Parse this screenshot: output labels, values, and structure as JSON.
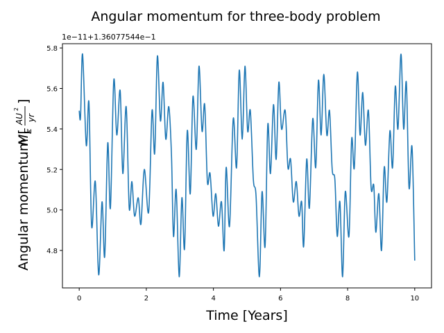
{
  "chart_data": {
    "type": "line",
    "title": "Angular momentum for three-body problem",
    "xlabel": "Time [Years]",
    "ylabel": {
      "text": "Angular momentum [",
      "symbol": "M",
      "subscript": "E",
      "numerator": "AU",
      "exponent": "2",
      "denominator": "yr",
      "close": "]"
    },
    "offset_text": "1e−11+1.36077544e−1",
    "xlim": [
      -0.5,
      10.5
    ],
    "ylim": [
      4.615,
      5.821
    ],
    "xticks": [
      0,
      2,
      4,
      6,
      8,
      10
    ],
    "yticks": [
      4.8,
      {
        "value": 5,
        "label": "5.0"
      },
      5.2,
      5.4,
      5.6,
      5.8
    ],
    "grid": false,
    "series": [
      {
        "color": "#1f77b4",
        "x": [
          0,
          0.04,
          0.1,
          0.21,
          0.29,
          0.37,
          0.48,
          0.58,
          0.68,
          0.76,
          0.85,
          0.93,
          1.03,
          1.12,
          1.22,
          1.3,
          1.4,
          1.49,
          1.57,
          1.65,
          1.76,
          1.84,
          1.94,
          2.07,
          2.17,
          2.25,
          2.33,
          2.42,
          2.5,
          2.58,
          2.67,
          2.75,
          2.81,
          2.89,
          2.98,
          3.06,
          3.14,
          3.22,
          3.31,
          3.39,
          3.49,
          3.57,
          3.66,
          3.74,
          3.82,
          3.9,
          3.99,
          4.07,
          4.15,
          4.24,
          4.32,
          4.38,
          4.48,
          4.59,
          4.69,
          4.77,
          4.86,
          4.94,
          5.02,
          5.1,
          5.19,
          5.27,
          5.37,
          5.45,
          5.54,
          5.62,
          5.7,
          5.79,
          5.87,
          5.95,
          6.03,
          6.14,
          6.22,
          6.3,
          6.38,
          6.47,
          6.55,
          6.63,
          6.69,
          6.78,
          6.86,
          6.96,
          7.05,
          7.13,
          7.21,
          7.29,
          7.38,
          7.46,
          7.54,
          7.62,
          7.69,
          7.77,
          7.85,
          7.93,
          8.04,
          8.12,
          8.2,
          8.29,
          8.37,
          8.45,
          8.53,
          8.62,
          8.7,
          8.78,
          8.84,
          8.93,
          9.01,
          9.09,
          9.17,
          9.26,
          9.34,
          9.42,
          9.5,
          9.59,
          9.67,
          9.75,
          9.83,
          9.92,
          10.0
        ],
        "values": [
          5.49,
          5.46,
          5.77,
          5.32,
          5.53,
          4.92,
          5.14,
          4.68,
          5.04,
          4.77,
          5.33,
          5.01,
          5.64,
          5.37,
          5.59,
          5.18,
          5.51,
          5.01,
          5.14,
          4.97,
          5.06,
          4.93,
          5.2,
          4.99,
          5.49,
          5.28,
          5.76,
          5.44,
          5.63,
          5.35,
          5.51,
          5.27,
          4.87,
          5.1,
          4.67,
          5.06,
          4.81,
          5.39,
          5.08,
          5.56,
          5.3,
          5.71,
          5.39,
          5.52,
          5.14,
          5.18,
          4.97,
          5.08,
          4.92,
          5.04,
          4.8,
          5.21,
          4.92,
          5.45,
          5.21,
          5.69,
          5.35,
          5.71,
          5.39,
          5.49,
          5.15,
          5.07,
          4.67,
          5.09,
          4.82,
          5.42,
          5.18,
          5.52,
          5.25,
          5.63,
          5.4,
          5.49,
          5.21,
          5.25,
          5.04,
          5.14,
          4.97,
          5.04,
          4.82,
          5.25,
          5.01,
          5.45,
          5.21,
          5.64,
          5.37,
          5.67,
          5.37,
          5.49,
          5.2,
          5.15,
          4.87,
          5.04,
          4.67,
          5.09,
          4.87,
          5.35,
          5.21,
          5.68,
          5.37,
          5.58,
          5.32,
          5.49,
          5.11,
          5.12,
          4.89,
          5.08,
          4.8,
          5.21,
          5.04,
          5.39,
          5.21,
          5.61,
          5.4,
          5.77,
          5.4,
          5.63,
          5.11,
          5.31,
          4.75
        ]
      }
    ]
  }
}
